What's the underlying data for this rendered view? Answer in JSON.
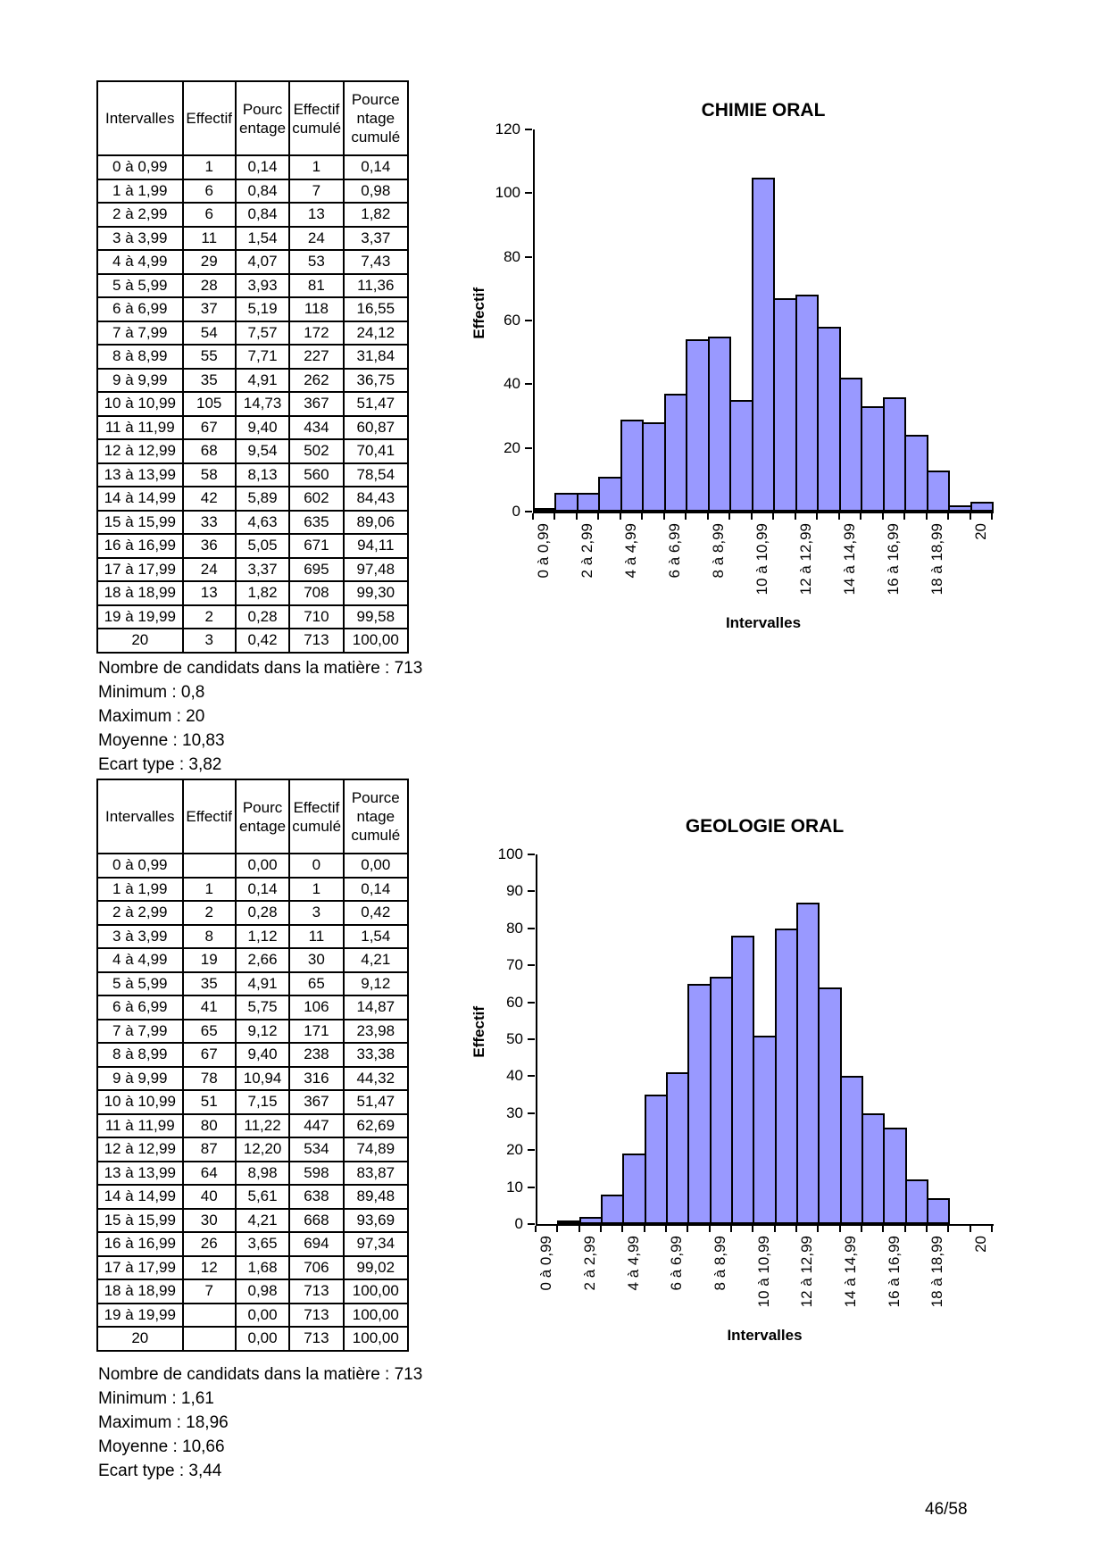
{
  "page": {
    "footer_page_number": "46/58"
  },
  "tables": [
    {
      "name": "chimie-oral-table",
      "headers": [
        "Intervalles",
        "Effectif",
        "Pourc\nentage",
        "Effectif\ncumulé",
        "Pource\nntage\ncumulé"
      ],
      "rows": [
        [
          "0 à 0,99",
          "1",
          "0,14",
          "1",
          "0,14"
        ],
        [
          "1 à 1,99",
          "6",
          "0,84",
          "7",
          "0,98"
        ],
        [
          "2 à 2,99",
          "6",
          "0,84",
          "13",
          "1,82"
        ],
        [
          "3 à 3,99",
          "11",
          "1,54",
          "24",
          "3,37"
        ],
        [
          "4 à 4,99",
          "29",
          "4,07",
          "53",
          "7,43"
        ],
        [
          "5 à 5,99",
          "28",
          "3,93",
          "81",
          "11,36"
        ],
        [
          "6 à 6,99",
          "37",
          "5,19",
          "118",
          "16,55"
        ],
        [
          "7 à 7,99",
          "54",
          "7,57",
          "172",
          "24,12"
        ],
        [
          "8 à 8,99",
          "55",
          "7,71",
          "227",
          "31,84"
        ],
        [
          "9 à 9,99",
          "35",
          "4,91",
          "262",
          "36,75"
        ],
        [
          "10 à 10,99",
          "105",
          "14,73",
          "367",
          "51,47"
        ],
        [
          "11 à 11,99",
          "67",
          "9,40",
          "434",
          "60,87"
        ],
        [
          "12 à 12,99",
          "68",
          "9,54",
          "502",
          "70,41"
        ],
        [
          "13 à 13,99",
          "58",
          "8,13",
          "560",
          "78,54"
        ],
        [
          "14 à 14,99",
          "42",
          "5,89",
          "602",
          "84,43"
        ],
        [
          "15 à 15,99",
          "33",
          "4,63",
          "635",
          "89,06"
        ],
        [
          "16 à 16,99",
          "36",
          "5,05",
          "671",
          "94,11"
        ],
        [
          "17 à 17,99",
          "24",
          "3,37",
          "695",
          "97,48"
        ],
        [
          "18 à 18,99",
          "13",
          "1,82",
          "708",
          "99,30"
        ],
        [
          "19 à 19,99",
          "2",
          "0,28",
          "710",
          "99,58"
        ],
        [
          "20",
          "3",
          "0,42",
          "713",
          "100,00"
        ]
      ],
      "summary": [
        "Nombre de candidats dans la matière : 713",
        "Minimum : 0,8",
        "Maximum : 20",
        "Moyenne : 10,83",
        "Ecart type : 3,82"
      ]
    },
    {
      "name": "geologie-oral-table",
      "headers": [
        "Intervalles",
        "Effectif",
        "Pourc\nentage",
        "Effectif\ncumulé",
        "Pource\nntage\ncumulé"
      ],
      "rows": [
        [
          "0 à 0,99",
          "",
          "0,00",
          "0",
          "0,00"
        ],
        [
          "1 à 1,99",
          "1",
          "0,14",
          "1",
          "0,14"
        ],
        [
          "2 à 2,99",
          "2",
          "0,28",
          "3",
          "0,42"
        ],
        [
          "3 à 3,99",
          "8",
          "1,12",
          "11",
          "1,54"
        ],
        [
          "4 à 4,99",
          "19",
          "2,66",
          "30",
          "4,21"
        ],
        [
          "5 à 5,99",
          "35",
          "4,91",
          "65",
          "9,12"
        ],
        [
          "6 à 6,99",
          "41",
          "5,75",
          "106",
          "14,87"
        ],
        [
          "7 à 7,99",
          "65",
          "9,12",
          "171",
          "23,98"
        ],
        [
          "8 à 8,99",
          "67",
          "9,40",
          "238",
          "33,38"
        ],
        [
          "9 à 9,99",
          "78",
          "10,94",
          "316",
          "44,32"
        ],
        [
          "10 à 10,99",
          "51",
          "7,15",
          "367",
          "51,47"
        ],
        [
          "11 à 11,99",
          "80",
          "11,22",
          "447",
          "62,69"
        ],
        [
          "12 à 12,99",
          "87",
          "12,20",
          "534",
          "74,89"
        ],
        [
          "13 à 13,99",
          "64",
          "8,98",
          "598",
          "83,87"
        ],
        [
          "14 à 14,99",
          "40",
          "5,61",
          "638",
          "89,48"
        ],
        [
          "15 à 15,99",
          "30",
          "4,21",
          "668",
          "93,69"
        ],
        [
          "16 à 16,99",
          "26",
          "3,65",
          "694",
          "97,34"
        ],
        [
          "17 à 17,99",
          "12",
          "1,68",
          "706",
          "99,02"
        ],
        [
          "18 à 18,99",
          "7",
          "0,98",
          "713",
          "100,00"
        ],
        [
          "19 à 19,99",
          "",
          "0,00",
          "713",
          "100,00"
        ],
        [
          "20",
          "",
          "0,00",
          "713",
          "100,00"
        ]
      ],
      "summary": [
        "Nombre de candidats dans la matière : 713",
        "Minimum : 1,61",
        "Maximum : 18,96",
        "Moyenne : 10,66",
        "Ecart type : 3,44"
      ]
    }
  ],
  "chart_data": [
    {
      "type": "bar",
      "title": "CHIMIE ORAL",
      "xlabel": "Intervalles",
      "ylabel": "Effectif",
      "categories": [
        "0 à 0,99",
        "1 à 1,99",
        "2 à 2,99",
        "3 à 3,99",
        "4 à 4,99",
        "5 à 5,99",
        "6 à 6,99",
        "7 à 7,99",
        "8 à 8,99",
        "9 à 9,99",
        "10 à 10,99",
        "11 à 11,99",
        "12 à 12,99",
        "13 à 13,99",
        "14 à 14,99",
        "15 à 15,99",
        "16 à 16,99",
        "17 à 17,99",
        "18 à 18,99",
        "19 à 19,99",
        "20"
      ],
      "values": [
        1,
        6,
        6,
        11,
        29,
        28,
        37,
        54,
        55,
        35,
        105,
        67,
        68,
        58,
        42,
        33,
        36,
        24,
        13,
        2,
        3
      ],
      "x_tick_labels_shown": [
        "0 à 0,99",
        "2 à 2,99",
        "4 à 4,99",
        "6 à 6,99",
        "8 à 8,99",
        "10 à 10,99",
        "12 à 12,99",
        "14 à 14,99",
        "16 à 16,99",
        "18 à 18,99",
        "20"
      ],
      "ylim": [
        0,
        120
      ],
      "ytick_step": 20,
      "bar_color": "#9999FF",
      "grid": false,
      "legend_position": "none"
    },
    {
      "type": "bar",
      "title": "GEOLOGIE ORAL",
      "xlabel": "Intervalles",
      "ylabel": "Effectif",
      "categories": [
        "0 à 0,99",
        "1 à 1,99",
        "2 à 2,99",
        "3 à 3,99",
        "4 à 4,99",
        "5 à 5,99",
        "6 à 6,99",
        "7 à 7,99",
        "8 à 8,99",
        "9 à 9,99",
        "10 à 10,99",
        "11 à 11,99",
        "12 à 12,99",
        "13 à 13,99",
        "14 à 14,99",
        "15 à 15,99",
        "16 à 16,99",
        "17 à 17,99",
        "18 à 18,99",
        "19 à 19,99",
        "20"
      ],
      "values": [
        0,
        1,
        2,
        8,
        19,
        35,
        41,
        65,
        67,
        78,
        51,
        80,
        87,
        64,
        40,
        30,
        26,
        12,
        7,
        0,
        0
      ],
      "x_tick_labels_shown": [
        "0 à 0,99",
        "2 à 2,99",
        "4 à 4,99",
        "6 à 6,99",
        "8 à 8,99",
        "10 à 10,99",
        "12 à 12,99",
        "14 à 14,99",
        "16 à 16,99",
        "18 à 18,99",
        "20"
      ],
      "ylim": [
        0,
        100
      ],
      "ytick_step": 10,
      "bar_color": "#9999FF",
      "grid": false,
      "legend_position": "none"
    }
  ]
}
